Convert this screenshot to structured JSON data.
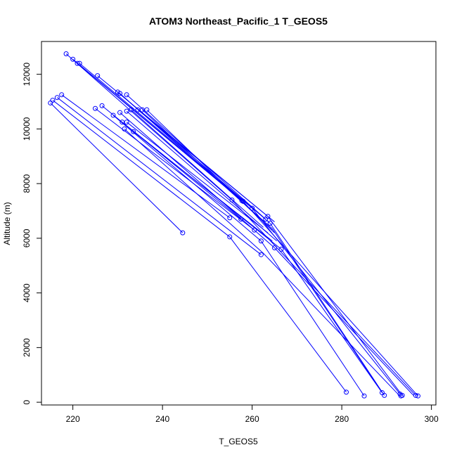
{
  "chart_data": {
    "type": "scatter",
    "title": "ATOM3 Northeast_Pacific_1 T_GEOS5",
    "xlabel": "T_GEOS5",
    "ylabel": "Altitude (m)",
    "xlim": [
      213,
      301
    ],
    "ylim": [
      -100,
      13200
    ],
    "xticks": [
      220,
      240,
      260,
      280,
      300
    ],
    "yticks": [
      0,
      2000,
      4000,
      6000,
      8000,
      10000,
      12000
    ],
    "color": "#0000ff",
    "grid": false,
    "segments": [
      {
        "x": [
          218.5,
          255.5
        ],
        "y": [
          12750,
          7400
        ]
      },
      {
        "x": [
          220.0,
          258.0
        ],
        "y": [
          12550,
          7350
        ]
      },
      {
        "x": [
          221.0,
          257.5
        ],
        "y": [
          12400,
          7400
        ]
      },
      {
        "x": [
          221.5,
          260.0
        ],
        "y": [
          12400,
          7100
        ]
      },
      {
        "x": [
          225.5,
          263.5
        ],
        "y": [
          11950,
          6800
        ]
      },
      {
        "x": [
          230.0,
          264.0
        ],
        "y": [
          11350,
          6550
        ]
      },
      {
        "x": [
          230.5,
          264.5
        ],
        "y": [
          11300,
          6350
        ]
      },
      {
        "x": [
          232.0,
          263.0
        ],
        "y": [
          11250,
          6700
        ]
      },
      {
        "x": [
          215.0,
          244.5
        ],
        "y": [
          10950,
          6200
        ]
      },
      {
        "x": [
          215.5,
          255.0
        ],
        "y": [
          11050,
          6050
        ]
      },
      {
        "x": [
          216.5,
          262.0
        ],
        "y": [
          11150,
          5400
        ]
      },
      {
        "x": [
          217.5,
          255.0
        ],
        "y": [
          11250,
          6750
        ]
      },
      {
        "x": [
          225.0,
          260.5
        ],
        "y": [
          10750,
          6300
        ]
      },
      {
        "x": [
          226.5,
          257.5
        ],
        "y": [
          10850,
          6700
        ]
      },
      {
        "x": [
          229.0,
          262.0
        ],
        "y": [
          10500,
          5900
        ]
      },
      {
        "x": [
          230.5,
          265.0
        ],
        "y": [
          10600,
          5650
        ]
      },
      {
        "x": [
          231.0,
          266.5
        ],
        "y": [
          10250,
          5600
        ]
      },
      {
        "x": [
          231.5,
          262.5
        ],
        "y": [
          10000,
          5450
        ]
      },
      {
        "x": [
          232.0,
          265.5
        ],
        "y": [
          10650,
          5900
        ]
      },
      {
        "x": [
          232.0,
          263.5
        ],
        "y": [
          10250,
          6200
        ]
      },
      {
        "x": [
          233.0,
          262.5
        ],
        "y": [
          10700,
          6400
        ]
      },
      {
        "x": [
          233.5,
          264.5
        ],
        "y": [
          9900,
          5900
        ]
      },
      {
        "x": [
          234.5,
          265.0
        ],
        "y": [
          10700,
          6600
        ]
      },
      {
        "x": [
          235.5,
          264.5
        ],
        "y": [
          10700,
          6300
        ]
      },
      {
        "x": [
          236.5,
          265.0
        ],
        "y": [
          10700,
          6200
        ]
      },
      {
        "x": [
          255.5,
          296.5
        ],
        "y": [
          7400,
          250
        ]
      },
      {
        "x": [
          258.0,
          297.0
        ],
        "y": [
          7350,
          230
        ]
      },
      {
        "x": [
          260.0,
          293.0
        ],
        "y": [
          7100,
          300
        ]
      },
      {
        "x": [
          263.5,
          293.5
        ],
        "y": [
          6800,
          250
        ]
      },
      {
        "x": [
          264.0,
          289.5
        ],
        "y": [
          6550,
          250
        ]
      },
      {
        "x": [
          264.5,
          289.0
        ],
        "y": [
          6350,
          350
        ]
      },
      {
        "x": [
          262.0,
          285.0
        ],
        "y": [
          5900,
          230
        ]
      },
      {
        "x": [
          255.0,
          281.0
        ],
        "y": [
          6050,
          370
        ]
      },
      {
        "x": [
          262.5,
          293.0
        ],
        "y": [
          5450,
          220
        ]
      },
      {
        "x": [
          265.0,
          296.0
        ],
        "y": [
          5650,
          250
        ]
      },
      {
        "x": [
          266.5,
          289.0
        ],
        "y": [
          5600,
          350
        ]
      }
    ],
    "points": {
      "x": [
        218.5,
        220.0,
        221.0,
        221.5,
        225.5,
        230.0,
        230.5,
        232.0,
        215.0,
        215.5,
        216.5,
        217.5,
        225.0,
        226.5,
        229.0,
        230.5,
        231.0,
        231.5,
        232.0,
        232.0,
        233.0,
        233.5,
        234.5,
        235.5,
        236.5,
        244.5,
        255.0,
        255.0,
        255.5,
        257.5,
        257.7,
        258.0,
        260.0,
        260.5,
        262.0,
        262.0,
        263.0,
        263.5,
        264.0,
        265.0,
        266.5,
        281.0,
        285.0,
        289.0,
        289.5,
        293.0,
        293.2,
        293.5,
        296.5,
        297.0
      ],
      "y": [
        12750,
        12550,
        12400,
        12400,
        11950,
        11350,
        11300,
        11250,
        10950,
        11050,
        11150,
        11250,
        10750,
        10850,
        10500,
        10600,
        10250,
        10000,
        10650,
        10250,
        10700,
        9900,
        10700,
        10700,
        10700,
        6200,
        6750,
        6050,
        7400,
        6700,
        7380,
        7350,
        7100,
        6300,
        5900,
        5400,
        6700,
        6800,
        6550,
        5650,
        5600,
        370,
        230,
        350,
        250,
        300,
        230,
        250,
        250,
        230
      ]
    }
  }
}
